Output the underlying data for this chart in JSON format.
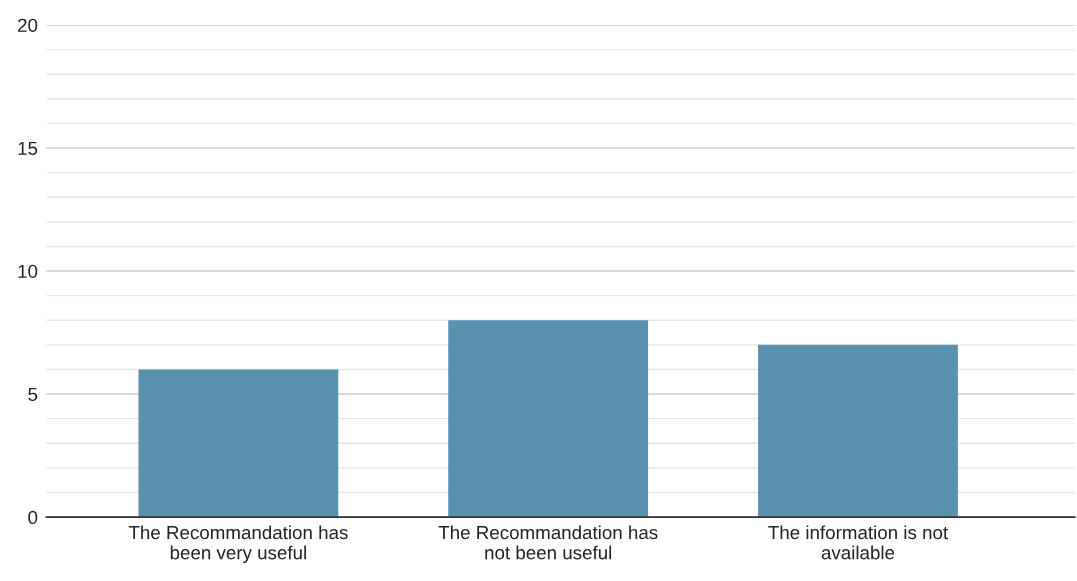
{
  "chart_data": {
    "type": "bar",
    "categories": [
      "The Recommandation has\nbeen very useful",
      "The Recommandation has\nnot been useful",
      "The information is not\navailable"
    ],
    "values": [
      6,
      8,
      7
    ],
    "color": "#5a91ae",
    "ylim": [
      0,
      20
    ],
    "yticks": [
      0,
      5,
      10,
      15,
      20
    ],
    "grid": "y"
  }
}
